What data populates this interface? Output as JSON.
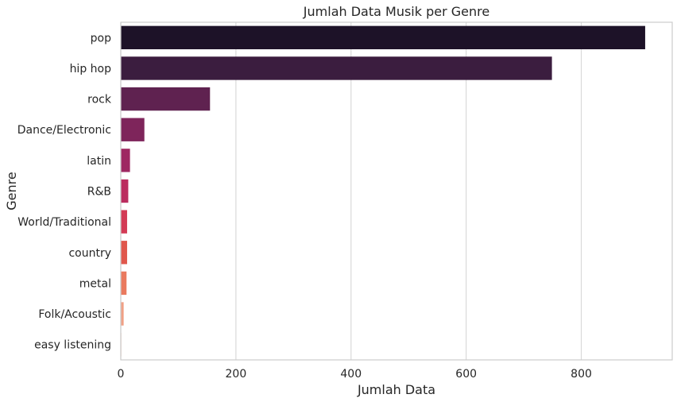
{
  "chart_data": {
    "type": "bar",
    "orientation": "horizontal",
    "title": "Jumlah Data Musik per Genre",
    "xlabel": "Jumlah Data",
    "ylabel": "Genre",
    "categories": [
      "pop",
      "hip hop",
      "rock",
      "Dance/Electronic",
      "latin",
      "R&B",
      "World/Traditional",
      "country",
      "metal",
      "Folk/Acoustic",
      "easy listening"
    ],
    "values": [
      911,
      749,
      155,
      41,
      16,
      13,
      11,
      11,
      10,
      5,
      1
    ],
    "xlim": [
      0,
      958
    ],
    "xticks": [
      0,
      200,
      400,
      600,
      800
    ],
    "grid": "x",
    "colors": [
      "#1d1228",
      "#3b1d3f",
      "#5f2250",
      "#7e255b",
      "#9e2862",
      "#bb2d5f",
      "#d33a55",
      "#e0574c",
      "#ea7a5f",
      "#f0a085",
      "#f5c9b5"
    ]
  }
}
